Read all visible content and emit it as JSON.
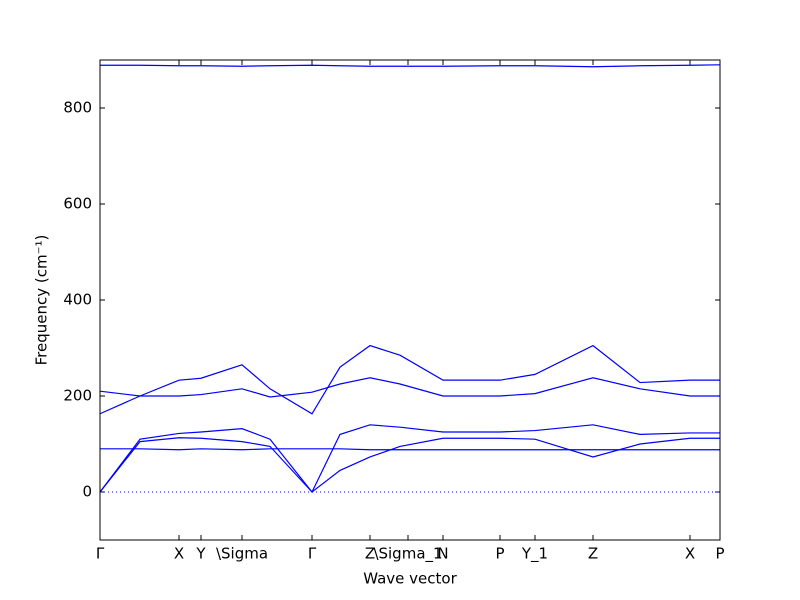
{
  "chart_data": {
    "type": "line",
    "x_label": "Wave vector",
    "y_label": "Frequency (cm⁻¹)",
    "x": [
      0,
      0.4,
      0.79,
      1.01,
      1.42,
      1.7,
      2.12,
      2.4,
      2.7,
      3.0,
      3.43,
      4.0,
      4.35,
      4.93,
      5.4,
      5.9,
      6.2
    ],
    "series": [
      {
        "color": "#0000ff",
        "values": [
          163,
          200,
          233,
          237,
          265,
          215,
          163,
          260,
          305,
          285,
          233,
          233,
          245,
          305,
          228,
          233,
          233
        ]
      },
      {
        "color": "#0000ff",
        "values": [
          210,
          200,
          200,
          203,
          215,
          198,
          208,
          225,
          238,
          225,
          200,
          200,
          205,
          238,
          215,
          200,
          200
        ]
      },
      {
        "color": "#0000ff",
        "values": [
          0,
          110,
          122,
          125,
          132,
          110,
          0,
          120,
          140,
          135,
          125,
          125,
          128,
          140,
          120,
          123,
          123
        ]
      },
      {
        "color": "#0000ff",
        "values": [
          0,
          105,
          113,
          112,
          105,
          95,
          0,
          45,
          73,
          95,
          112,
          112,
          110,
          73,
          100,
          112,
          112
        ]
      },
      {
        "color": "#0000ff",
        "values": [
          90,
          90,
          88,
          90,
          88,
          90,
          90,
          90,
          88,
          88,
          88,
          88,
          88,
          88,
          88,
          88,
          88
        ]
      },
      {
        "color": "#0000ff",
        "values": [
          889,
          889,
          888,
          888,
          887,
          888,
          889,
          888,
          887,
          887,
          887,
          888,
          888,
          886,
          888,
          889,
          890
        ]
      }
    ],
    "xlim": [
      0,
      6.2
    ],
    "ylim": [
      -100,
      900
    ],
    "yticks": [
      0,
      200,
      400,
      600,
      800
    ],
    "xticks": [
      {
        "value": 0,
        "label": "Γ"
      },
      {
        "value": 0.79,
        "label": "X"
      },
      {
        "value": 1.01,
        "label": "Y"
      },
      {
        "value": 1.42,
        "label": "\\Sigma"
      },
      {
        "value": 2.12,
        "label": "Γ"
      },
      {
        "value": 2.7,
        "label": "Z"
      },
      {
        "value": 3.08,
        "label": "\\Sigma_1"
      },
      {
        "value": 3.43,
        "label": "N"
      },
      {
        "value": 4.0,
        "label": "P"
      },
      {
        "value": 4.35,
        "label": "Y_1"
      },
      {
        "value": 4.93,
        "label": "Z"
      },
      {
        "value": 5.9,
        "label": "X"
      },
      {
        "value": 6.2,
        "label": "P"
      }
    ],
    "zero_line": true,
    "grid": false
  }
}
